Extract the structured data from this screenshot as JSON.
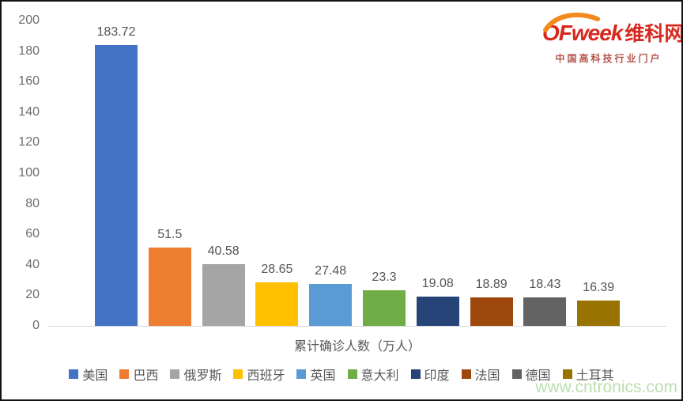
{
  "chart_data": {
    "type": "bar",
    "categories": [
      "美国",
      "巴西",
      "俄罗斯",
      "西班牙",
      "英国",
      "意大利",
      "印度",
      "法国",
      "德国",
      "土耳其"
    ],
    "values": [
      183.72,
      51.5,
      40.58,
      28.65,
      27.48,
      23.3,
      19.08,
      18.89,
      18.43,
      16.39
    ],
    "value_labels": [
      "183.72",
      "51.5",
      "40.58",
      "28.65",
      "27.48",
      "23.3",
      "19.08",
      "18.89",
      "18.43",
      "16.39"
    ],
    "colors": [
      "#4472C4",
      "#ED7D31",
      "#A5A5A5",
      "#FFC000",
      "#5B9BD5",
      "#70AD47",
      "#264478",
      "#9E480E",
      "#636363",
      "#997300"
    ],
    "title": "",
    "xlabel": "累计确诊人数（万人）",
    "ylabel": "",
    "ylim": [
      0,
      200
    ],
    "yticks": [
      "0",
      "20",
      "40",
      "60",
      "80",
      "100",
      "120",
      "140",
      "160",
      "180",
      "200"
    ],
    "grid": false,
    "legend_position": "bottom"
  },
  "logo": {
    "brand": "OFweek",
    "brand_cn": "维科网",
    "tagline": "中国高科技行业门户",
    "brand_color": "#D7281E",
    "tagline_color": "#B5544B",
    "swoosh_color": "#F28A1E"
  },
  "watermark": {
    "text": "www.cntronics.com",
    "color": "#BCDFAE"
  }
}
